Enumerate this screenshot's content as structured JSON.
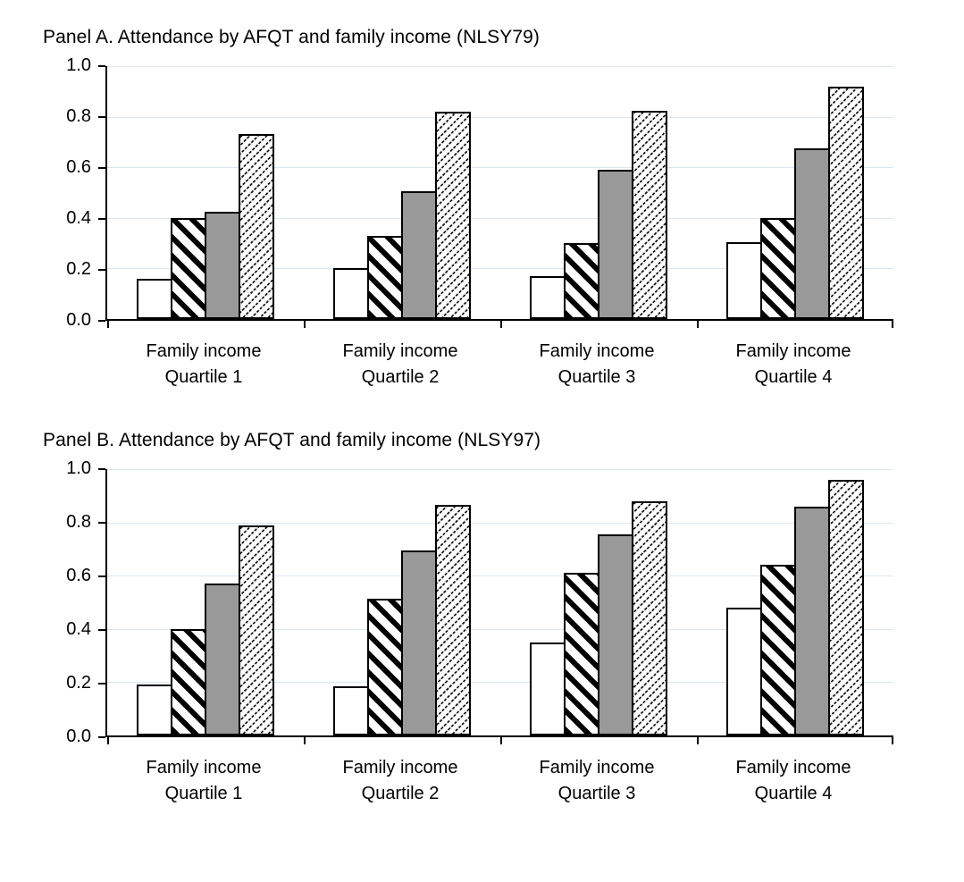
{
  "figure": {
    "background": "#ffffff",
    "legend": "none"
  },
  "colors": {
    "gridline": "#dbe5f1",
    "axis": "#000000",
    "bar_border": "#000000",
    "gray_fill": "#999999",
    "text": "#000000"
  },
  "chart_data": [
    {
      "type": "bar",
      "title": "Panel A. Attendance by AFQT and family income (NLSY79)",
      "categories": [
        [
          "Family income",
          "Quartile 1"
        ],
        [
          "Family income",
          "Quartile 2"
        ],
        [
          "Family income",
          "Quartile 3"
        ],
        [
          "Family income",
          "Quartile 4"
        ]
      ],
      "series": [
        {
          "key": "white",
          "name": "white bar",
          "values": [
            0.16,
            0.2,
            0.17,
            0.305
          ]
        },
        {
          "key": "stripe",
          "name": "black diagonal stripes bar",
          "values": [
            0.4,
            0.33,
            0.3,
            0.4
          ]
        },
        {
          "key": "gray",
          "name": "solid gray bar",
          "values": [
            0.425,
            0.505,
            0.59,
            0.675
          ]
        },
        {
          "key": "hatch",
          "name": "light diagonal hatch bar",
          "values": [
            0.73,
            0.82,
            0.825,
            0.92
          ]
        }
      ],
      "xlabel": "",
      "ylabel": "",
      "ylim": [
        0,
        1.0
      ],
      "y_ticks": [
        "1.0",
        "0.8",
        "0.6",
        "0.4",
        "0.2",
        "0.0"
      ],
      "grid": true,
      "legend_position": "none"
    },
    {
      "type": "bar",
      "title": "Panel B. Attendance by AFQT and family income (NLSY97)",
      "categories": [
        [
          "Family income",
          "Quartile 1"
        ],
        [
          "Family income",
          "Quartile 2"
        ],
        [
          "Family income",
          "Quartile 3"
        ],
        [
          "Family income",
          "Quartile 4"
        ]
      ],
      "series": [
        {
          "key": "white",
          "name": "white bar",
          "values": [
            0.19,
            0.185,
            0.35,
            0.48
          ]
        },
        {
          "key": "stripe",
          "name": "black diagonal stripes bar",
          "values": [
            0.4,
            0.515,
            0.61,
            0.64
          ]
        },
        {
          "key": "gray",
          "name": "solid gray bar",
          "values": [
            0.57,
            0.695,
            0.755,
            0.86
          ]
        },
        {
          "key": "hatch",
          "name": "light diagonal hatch bar",
          "values": [
            0.79,
            0.865,
            0.88,
            0.96
          ]
        }
      ],
      "xlabel": "",
      "ylabel": "",
      "ylim": [
        0,
        1.0
      ],
      "y_ticks": [
        "1.0",
        "0.8",
        "0.6",
        "0.4",
        "0.2",
        "0.0"
      ],
      "grid": true,
      "legend_position": "none"
    }
  ]
}
